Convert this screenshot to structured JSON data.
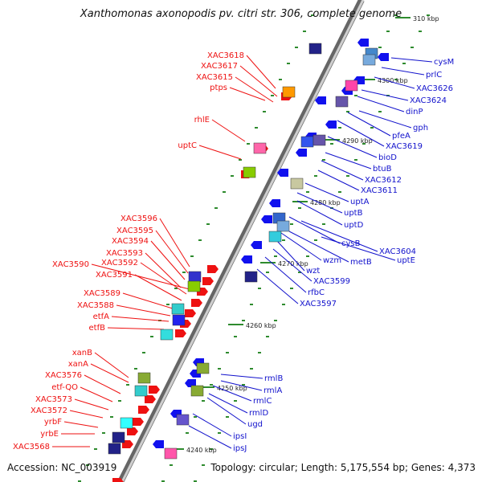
{
  "header": {
    "title": "Xanthomonas axonopodis pv. citri str. 306, complete genome"
  },
  "footer": {
    "accession": "Accession: NC_003919",
    "topology": "Topology: circular; Length: 5,175,554 bp; Genes: 4,373"
  },
  "kbp_markers": [
    "310 kbp",
    "4300 kbp",
    "4290 kbp",
    "4280 kbp",
    "4270 kbp",
    "4260 kbp",
    "4250 kbp",
    "4240 kbp"
  ],
  "genes_left": [
    "XAC3618",
    "XAC3617",
    "XAC3615",
    "ptps",
    "rhlE",
    "uptC",
    "XAC3596",
    "XAC3595",
    "XAC3594",
    "XAC3593",
    "XAC3590",
    "XAC3592",
    "XAC3591",
    "XAC3589",
    "XAC3588",
    "etfA",
    "etfB",
    "xanB",
    "xanA",
    "XAC3576",
    "etf-QO",
    "XAC3573",
    "XAC3572",
    "yrbF",
    "yrbE",
    "XAC3568"
  ],
  "genes_right": [
    "cysM",
    "prlC",
    "XAC3626",
    "XAC3624",
    "dinP",
    "gph",
    "pfeA",
    "XAC3619",
    "bioD",
    "btuB",
    "XAC3612",
    "XAC3611",
    "uptA",
    "uptB",
    "uptD",
    "cysB",
    "XAC3604",
    "wzm",
    "metB",
    "uptE",
    "wzt",
    "XAC3599",
    "rfbC",
    "XAC3597",
    "rmlB",
    "rmlA",
    "rmlC",
    "rmlD",
    "ugd",
    "ipsI",
    "ipsJ"
  ],
  "colors": {
    "forward": "#ee1111",
    "reverse": "#1111ee",
    "backbone": "#999999",
    "left_label": "#ee1111",
    "right_label": "#1111cc"
  }
}
